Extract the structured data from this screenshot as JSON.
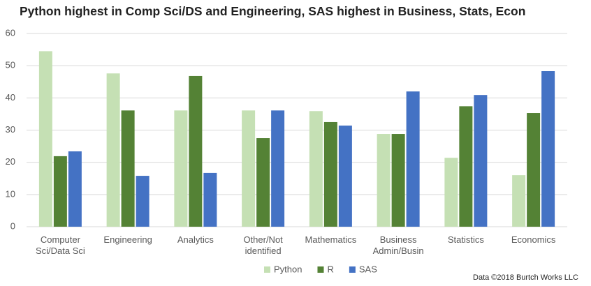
{
  "chart_data": {
    "type": "bar",
    "title": "Python highest in Comp Sci/DS and Engineering, SAS highest in Business, Stats, Econ",
    "source": "Data ©2018 Burtch Works LLC",
    "categories": [
      "Computer Sci/Data Sci",
      "Engineering",
      "Analytics",
      "Other/Not identified",
      "Mathematics",
      "Business Admin/Busin",
      "Statistics",
      "Economics"
    ],
    "series": [
      {
        "name": "Python",
        "color": "#c5e0b4",
        "values": [
          54.5,
          47.6,
          36.1,
          36.1,
          35.9,
          28.8,
          21.4,
          16.0
        ]
      },
      {
        "name": "R",
        "color": "#548235",
        "values": [
          21.9,
          36.1,
          46.8,
          27.5,
          32.5,
          28.8,
          37.4,
          35.3
        ]
      },
      {
        "name": "SAS",
        "color": "#4472c4",
        "values": [
          23.4,
          15.8,
          16.7,
          36.1,
          31.4,
          42.0,
          40.9,
          48.3
        ]
      }
    ],
    "ylim": [
      0,
      60
    ],
    "yticks": [
      0,
      10,
      20,
      30,
      40,
      50,
      60
    ],
    "grid": true,
    "legend": "bottom"
  }
}
